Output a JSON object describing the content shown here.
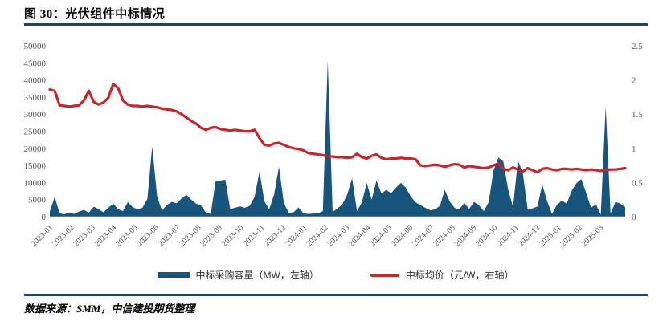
{
  "figure": {
    "label": "图 30：",
    "title": "光伏组件中标情况"
  },
  "source": {
    "text": "数据来源：SMM，中信建投期货整理"
  },
  "colors": {
    "area": "#17557c",
    "line": "#c9252c",
    "rule": "#1f4664",
    "axis_text": "#595959",
    "axis_line": "#9c9c9c"
  },
  "legend": [
    {
      "label": "中标采购容量（MW，左轴）",
      "type": "area"
    },
    {
      "label": "中标均价（元/W，右轴）",
      "type": "line"
    }
  ],
  "chart_data": {
    "type": "area",
    "title": "光伏组件中标情况",
    "xlabel": "",
    "ylabel_left": "MW",
    "ylabel_right": "元/W",
    "left_axis": {
      "min": 0,
      "max": 50000,
      "tick_labels": [
        "0",
        "5000",
        "10000",
        "15000",
        "20000",
        "25000",
        "30000",
        "35000",
        "40000",
        "45000",
        "50000"
      ]
    },
    "right_axis": {
      "min": 0,
      "max": 2.5,
      "tick_labels": [
        "0",
        "0.5",
        "1",
        "1.5",
        "2",
        "2.5"
      ]
    },
    "x_tick_labels": [
      "2023-01",
      "2023-02",
      "2023-03",
      "2023-04",
      "2023-05",
      "2023-06",
      "2023-07",
      "2023-08",
      "2023-09",
      "2023-10",
      "2023-11",
      "2023-12",
      "2024-01",
      "2024-02",
      "2024-03",
      "2024-04",
      "2024-05",
      "2024-06",
      "2024-07",
      "2024-08",
      "2024-09",
      "2024-10",
      "2024-11",
      "2024-12",
      "2025-01",
      "2025-02",
      "2025-03"
    ],
    "grid": false,
    "legend_position": "bottom",
    "series": [
      {
        "name": "中标采购容量（MW，左轴）",
        "type": "area",
        "axis": "left",
        "unit": "MW",
        "values": [
          1500,
          5800,
          1000,
          700,
          1200,
          800,
          1500,
          2000,
          1200,
          2900,
          2200,
          1300,
          2600,
          3800,
          2200,
          1600,
          4300,
          2800,
          2200,
          2600,
          5200,
          20500,
          6000,
          1800,
          3400,
          4300,
          3900,
          5300,
          6400,
          5000,
          3800,
          3300,
          1200,
          800,
          10400,
          10600,
          10800,
          2200,
          2600,
          3000,
          2600,
          3200,
          5800,
          13200,
          4500,
          2200,
          6500,
          14600,
          4000,
          1100,
          1300,
          2700,
          1000,
          800,
          900,
          1000,
          1600,
          45700,
          1400,
          2400,
          3600,
          6500,
          11300,
          1600,
          4200,
          9900,
          5000,
          10600,
          6800,
          7800,
          6900,
          8500,
          9900,
          8500,
          6000,
          4200,
          3400,
          2600,
          1900,
          2100,
          3200,
          7800,
          4500,
          2600,
          2100,
          4000,
          2300,
          4300,
          3400,
          1600,
          4200,
          13500,
          17300,
          16200,
          8000,
          2800,
          16500,
          12800,
          2200,
          2400,
          3000,
          9400,
          4500,
          800,
          3500,
          4700,
          3800,
          7500,
          9800,
          11000,
          7000,
          2600,
          3600,
          600,
          32300,
          900,
          4300,
          3800,
          2800
        ]
      },
      {
        "name": "中标均价（元/W，右轴）",
        "type": "line",
        "axis": "right",
        "unit": "元/W",
        "values": [
          1.86,
          1.84,
          1.63,
          1.62,
          1.61,
          1.62,
          1.63,
          1.7,
          1.84,
          1.68,
          1.64,
          1.67,
          1.74,
          1.94,
          1.88,
          1.7,
          1.64,
          1.62,
          1.62,
          1.61,
          1.62,
          1.61,
          1.6,
          1.58,
          1.57,
          1.56,
          1.54,
          1.5,
          1.45,
          1.4,
          1.36,
          1.3,
          1.27,
          1.3,
          1.31,
          1.28,
          1.27,
          1.26,
          1.27,
          1.26,
          1.25,
          1.25,
          1.27,
          1.15,
          1.05,
          1.04,
          1.07,
          1.08,
          1.05,
          1.02,
          1.0,
          0.99,
          0.97,
          0.93,
          0.92,
          0.91,
          0.9,
          0.88,
          0.88,
          0.87,
          0.87,
          0.86,
          0.87,
          0.92,
          0.87,
          0.85,
          0.89,
          0.91,
          0.86,
          0.84,
          0.85,
          0.85,
          0.86,
          0.85,
          0.85,
          0.84,
          0.75,
          0.74,
          0.75,
          0.76,
          0.75,
          0.73,
          0.75,
          0.77,
          0.76,
          0.72,
          0.74,
          0.73,
          0.72,
          0.71,
          0.72,
          0.75,
          0.78,
          0.7,
          0.68,
          0.72,
          0.69,
          0.66,
          0.71,
          0.68,
          0.65,
          0.7,
          0.71,
          0.69,
          0.68,
          0.7,
          0.7,
          0.69,
          0.7,
          0.69,
          0.68,
          0.69,
          0.68,
          0.67,
          0.68,
          0.69,
          0.69,
          0.7,
          0.71
        ]
      }
    ]
  }
}
